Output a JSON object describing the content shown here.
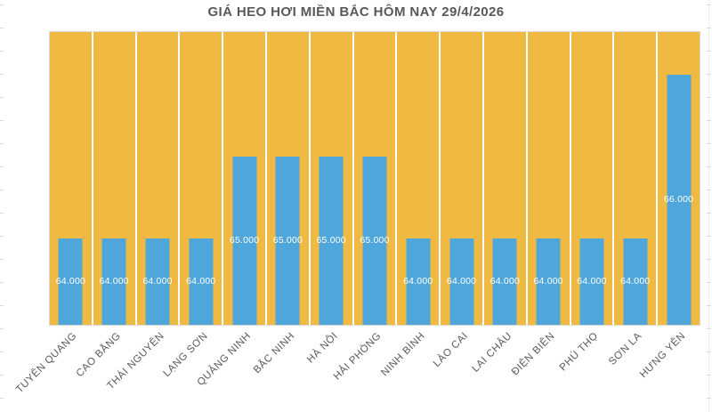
{
  "chart_data": {
    "type": "bar",
    "title": "GIÁ HEO HƠI MIỀN BẮC HÔM NAY 29/4/2026",
    "categories": [
      "TUYÊN QUANG",
      "CAO BẰNG",
      "THÁI NGUYÊN",
      "LẠNG SƠN",
      "QUẢNG NINH",
      "BẮC NINH",
      "HÀ NỘI",
      "HẢI PHÒNG",
      "NINH BÌNH",
      "LÀO CAI",
      "LAI CHÂU",
      "ĐIỆN BIÊN",
      "PHÚ THỌ",
      "SƠN LA",
      "HƯNG YÊN"
    ],
    "values": [
      64000,
      64000,
      64000,
      64000,
      65000,
      65000,
      65000,
      65000,
      64000,
      64000,
      64000,
      64000,
      64000,
      64000,
      66000
    ],
    "data_labels": [
      "64.000",
      "64.000",
      "64.000",
      "64.000",
      "65.000",
      "65.000",
      "65.000",
      "65.000",
      "64.000",
      "64.000",
      "64.000",
      "64.000",
      "64.000",
      "64.000",
      "66.000"
    ],
    "xlabel": "",
    "ylabel": "",
    "ylim": [
      62940,
      66520
    ],
    "y_axis_visible": false,
    "legend": "none",
    "grid": "white vertical separators between category columns",
    "data_label_position": "center-of-bar",
    "colors": {
      "bar": "#4FA6DB",
      "plot_background": "#F0B942",
      "title_text": "#595959",
      "axis_text": "#595959",
      "data_label_text": "#FFFFFF",
      "plot_border": "#D9D9D9",
      "separator": "#FFFFFF"
    }
  }
}
